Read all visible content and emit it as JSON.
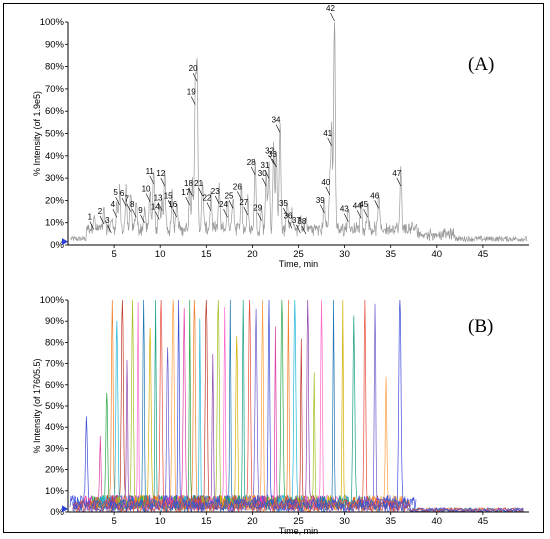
{
  "chart_data": [
    {
      "type": "line",
      "panel_label": "(A)",
      "xlabel": "Time, min",
      "ylabel": "% Intensity (of 1.9e5)",
      "xlim": [
        0,
        50
      ],
      "ylim": [
        0,
        100
      ],
      "x_ticks": [
        5,
        10,
        15,
        20,
        25,
        30,
        35,
        40,
        45
      ],
      "x_tick_labels": [
        "5",
        "10",
        "15",
        "20",
        "25",
        "30",
        "35",
        "40",
        "45"
      ],
      "y_ticks": [
        0,
        10,
        20,
        30,
        40,
        50,
        60,
        70,
        80,
        90,
        100
      ],
      "y_tick_labels": [
        "0%",
        "10%",
        "20%",
        "30%",
        "40%",
        "50%",
        "60%",
        "70%",
        "80%",
        "90%",
        "100%"
      ],
      "trace_color": "#9a9a9a",
      "peaks": [
        {
          "label": "1",
          "x": 2.8,
          "y": 6.5
        },
        {
          "label": "2",
          "x": 3.9,
          "y": 9.0
        },
        {
          "label": "3",
          "x": 4.7,
          "y": 5.0
        },
        {
          "label": "4",
          "x": 5.3,
          "y": 12.0
        },
        {
          "label": "5",
          "x": 5.6,
          "y": 17.5
        },
        {
          "label": "6",
          "x": 6.3,
          "y": 17.0
        },
        {
          "label": "7",
          "x": 6.8,
          "y": 14.5
        },
        {
          "label": "8",
          "x": 7.4,
          "y": 12.0
        },
        {
          "label": "9",
          "x": 8.3,
          "y": 9.5
        },
        {
          "label": "10",
          "x": 8.9,
          "y": 19.0
        },
        {
          "label": "11",
          "x": 9.3,
          "y": 27.0
        },
        {
          "label": "12",
          "x": 10.5,
          "y": 26.0
        },
        {
          "label": "13",
          "x": 10.2,
          "y": 15.0
        },
        {
          "label": "14",
          "x": 9.9,
          "y": 11.0
        },
        {
          "label": "15",
          "x": 11.3,
          "y": 16.0
        },
        {
          "label": "16",
          "x": 11.8,
          "y": 12.0
        },
        {
          "label": "17",
          "x": 13.2,
          "y": 17.5
        },
        {
          "label": "18",
          "x": 13.5,
          "y": 21.5
        },
        {
          "label": "19",
          "x": 13.8,
          "y": 62.5
        },
        {
          "label": "20",
          "x": 14.0,
          "y": 73.0
        },
        {
          "label": "21",
          "x": 14.6,
          "y": 21.5
        },
        {
          "label": "22",
          "x": 15.5,
          "y": 15.0
        },
        {
          "label": "23",
          "x": 16.4,
          "y": 18.0
        },
        {
          "label": "24",
          "x": 17.3,
          "y": 12.0
        },
        {
          "label": "25",
          "x": 17.9,
          "y": 16.0
        },
        {
          "label": "26",
          "x": 18.8,
          "y": 20.0
        },
        {
          "label": "27",
          "x": 19.5,
          "y": 13.0
        },
        {
          "label": "28",
          "x": 20.3,
          "y": 31.0
        },
        {
          "label": "29",
          "x": 21.0,
          "y": 10.5
        },
        {
          "label": "30",
          "x": 21.5,
          "y": 26.0
        },
        {
          "label": "31",
          "x": 21.8,
          "y": 29.5
        },
        {
          "label": "32",
          "x": 22.3,
          "y": 36.0
        },
        {
          "label": "33",
          "x": 22.6,
          "y": 34.5
        },
        {
          "label": "34",
          "x": 23.0,
          "y": 50.0
        },
        {
          "label": "35",
          "x": 23.8,
          "y": 12.5
        },
        {
          "label": "36",
          "x": 24.3,
          "y": 7.0
        },
        {
          "label": "37",
          "x": 25.2,
          "y": 5.0
        },
        {
          "label": "38",
          "x": 25.8,
          "y": 4.5
        },
        {
          "label": "39",
          "x": 27.8,
          "y": 14.0
        },
        {
          "label": "40",
          "x": 28.4,
          "y": 22.0
        },
        {
          "label": "41",
          "x": 28.6,
          "y": 44.0
        },
        {
          "label": "42",
          "x": 28.9,
          "y": 100.0
        },
        {
          "label": "43",
          "x": 30.4,
          "y": 10.0
        },
        {
          "label": "44",
          "x": 31.8,
          "y": 11.5
        },
        {
          "label": "45",
          "x": 32.5,
          "y": 12.0
        },
        {
          "label": "46",
          "x": 33.7,
          "y": 16.0
        },
        {
          "label": "47",
          "x": 36.1,
          "y": 26.0
        }
      ]
    },
    {
      "type": "line",
      "panel_label": "(B)",
      "xlabel": "Time, min",
      "ylabel": "% Intensity (of 17605.5)",
      "xlim": [
        0,
        50
      ],
      "ylim": [
        0,
        100
      ],
      "x_ticks": [
        5,
        10,
        15,
        20,
        25,
        30,
        35,
        40,
        45
      ],
      "x_tick_labels": [
        "5",
        "10",
        "15",
        "20",
        "25",
        "30",
        "35",
        "40",
        "45"
      ],
      "y_ticks": [
        0,
        10,
        20,
        30,
        40,
        50,
        60,
        70,
        80,
        90,
        100
      ],
      "y_tick_labels": [
        "0%",
        "10%",
        "20%",
        "30%",
        "40%",
        "50%",
        "60%",
        "70%",
        "80%",
        "90%",
        "100%"
      ],
      "trace_colors": [
        "#3b4bd8",
        "#e03ea8",
        "#2aa84a",
        "#f07f2a",
        "#22b8d8",
        "#c0392b",
        "#8e44ad",
        "#a0c020",
        "#ff66cc",
        "#1f77b4",
        "#d4b000",
        "#16a085",
        "#e74c3c",
        "#6a5acd",
        "#ff9f40"
      ],
      "peaks": [
        {
          "x": 2.0,
          "y": 40
        },
        {
          "x": 3.5,
          "y": 30
        },
        {
          "x": 4.2,
          "y": 55
        },
        {
          "x": 4.8,
          "y": 100
        },
        {
          "x": 5.3,
          "y": 88
        },
        {
          "x": 5.9,
          "y": 100
        },
        {
          "x": 6.4,
          "y": 70
        },
        {
          "x": 7.0,
          "y": 100
        },
        {
          "x": 7.6,
          "y": 95
        },
        {
          "x": 8.2,
          "y": 100
        },
        {
          "x": 8.9,
          "y": 80
        },
        {
          "x": 9.5,
          "y": 100
        },
        {
          "x": 10.1,
          "y": 100
        },
        {
          "x": 10.8,
          "y": 75
        },
        {
          "x": 11.4,
          "y": 100
        },
        {
          "x": 12.0,
          "y": 100
        },
        {
          "x": 12.6,
          "y": 90
        },
        {
          "x": 13.2,
          "y": 100
        },
        {
          "x": 13.7,
          "y": 100
        },
        {
          "x": 14.3,
          "y": 85
        },
        {
          "x": 15.0,
          "y": 100
        },
        {
          "x": 15.7,
          "y": 70
        },
        {
          "x": 16.3,
          "y": 100
        },
        {
          "x": 17.0,
          "y": 95
        },
        {
          "x": 17.6,
          "y": 100
        },
        {
          "x": 18.3,
          "y": 80
        },
        {
          "x": 19.0,
          "y": 100
        },
        {
          "x": 19.7,
          "y": 100
        },
        {
          "x": 20.4,
          "y": 90
        },
        {
          "x": 21.1,
          "y": 100
        },
        {
          "x": 21.8,
          "y": 100
        },
        {
          "x": 22.5,
          "y": 85
        },
        {
          "x": 23.2,
          "y": 100
        },
        {
          "x": 23.9,
          "y": 95
        },
        {
          "x": 24.6,
          "y": 100
        },
        {
          "x": 25.3,
          "y": 80
        },
        {
          "x": 26.0,
          "y": 100
        },
        {
          "x": 26.7,
          "y": 60
        },
        {
          "x": 27.5,
          "y": 100
        },
        {
          "x": 28.8,
          "y": 100
        },
        {
          "x": 29.8,
          "y": 100
        },
        {
          "x": 31.0,
          "y": 85
        },
        {
          "x": 32.2,
          "y": 100
        },
        {
          "x": 33.3,
          "y": 95
        },
        {
          "x": 34.5,
          "y": 60
        },
        {
          "x": 36.0,
          "y": 100
        }
      ]
    }
  ]
}
